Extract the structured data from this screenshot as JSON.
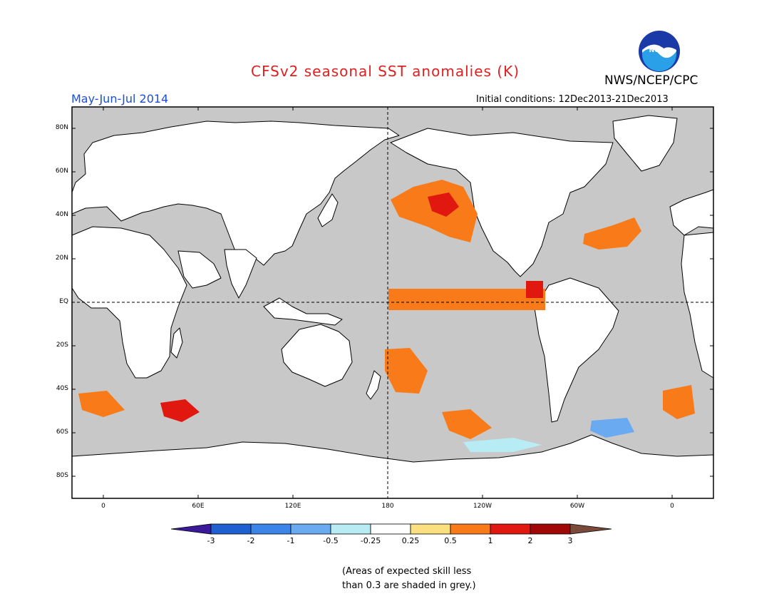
{
  "header": {
    "title": "CFSv2 seasonal SST anomalies (K)",
    "agency": "NWS/NCEP/CPC",
    "logo_text": "NOAA",
    "period": "May-Jun-Jul 2014",
    "initial_conditions": "Initial conditions: 12Dec2013-21Dec2013"
  },
  "map": {
    "lat_labels": [
      "80N",
      "60N",
      "40N",
      "20N",
      "EQ",
      "20S",
      "40S",
      "60S",
      "80S"
    ],
    "lon_labels": [
      "0",
      "60E",
      "120E",
      "180",
      "120W",
      "60W",
      "0"
    ],
    "grey_meaning": "low skill",
    "colors": {
      "grey": "#c8c8c8",
      "land": "#ffffff",
      "outline": "#000000"
    }
  },
  "colorbar": {
    "ticks": [
      "-3",
      "-2",
      "-1",
      "-0.5",
      "-0.25",
      "0.25",
      "0.5",
      "1",
      "2",
      "3"
    ],
    "colors": [
      "#3a1a9a",
      "#1f60d0",
      "#3b84e8",
      "#6aaaf0",
      "#b8ecf4",
      "#ffffff",
      "#fbe080",
      "#f87a18",
      "#e01810",
      "#a00808",
      "#7a4a3a"
    ]
  },
  "note": {
    "line1": "(Areas of expected skill less",
    "line2": "than 0.3 are shaded in grey.)"
  }
}
